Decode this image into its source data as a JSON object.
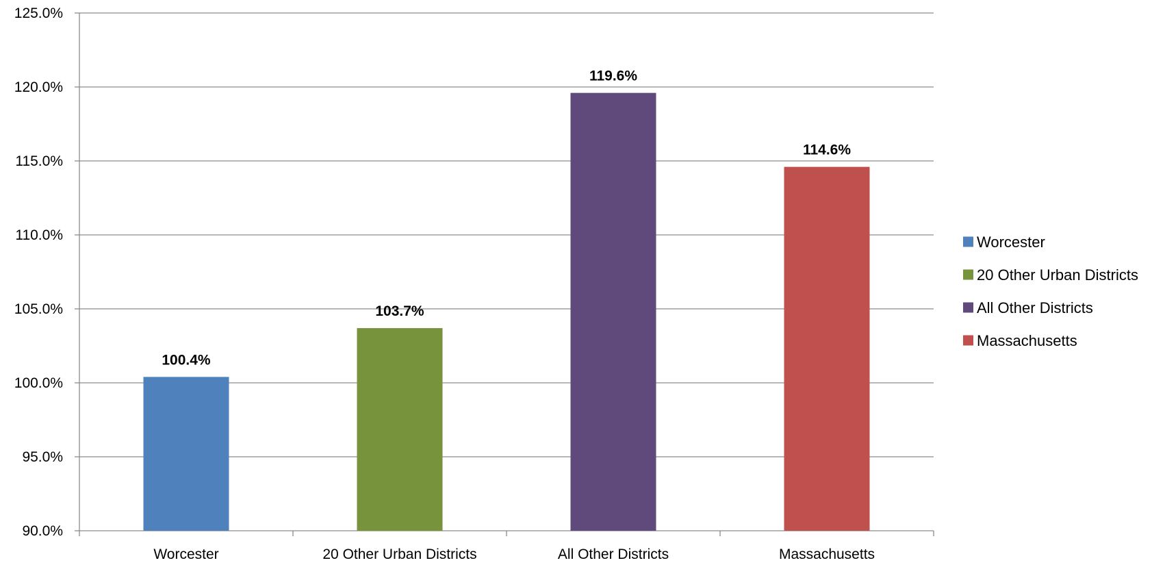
{
  "chart_data": {
    "type": "bar",
    "categories": [
      "Worcester",
      "20 Other Urban Districts",
      "All Other Districts",
      "Massachusetts"
    ],
    "values": [
      100.4,
      103.7,
      119.6,
      114.6
    ],
    "data_labels": [
      "100.4%",
      "103.7%",
      "119.6%",
      "114.6%"
    ],
    "colors": [
      "#4f81bd",
      "#77933c",
      "#604a7b",
      "#c0504d"
    ],
    "ylim": [
      90,
      125
    ],
    "y_ticks": [
      90,
      95,
      100,
      105,
      110,
      115,
      120,
      125
    ],
    "y_tick_labels": [
      "90.0%",
      "95.0%",
      "100.0%",
      "105.0%",
      "110.0%",
      "115.0%",
      "120.0%",
      "125.0%"
    ],
    "grid": true,
    "legend": {
      "position": "right",
      "entries": [
        "Worcester",
        "20 Other Urban Districts",
        "All Other Districts",
        "Massachusetts"
      ]
    },
    "title": "",
    "xlabel": "",
    "ylabel": ""
  }
}
